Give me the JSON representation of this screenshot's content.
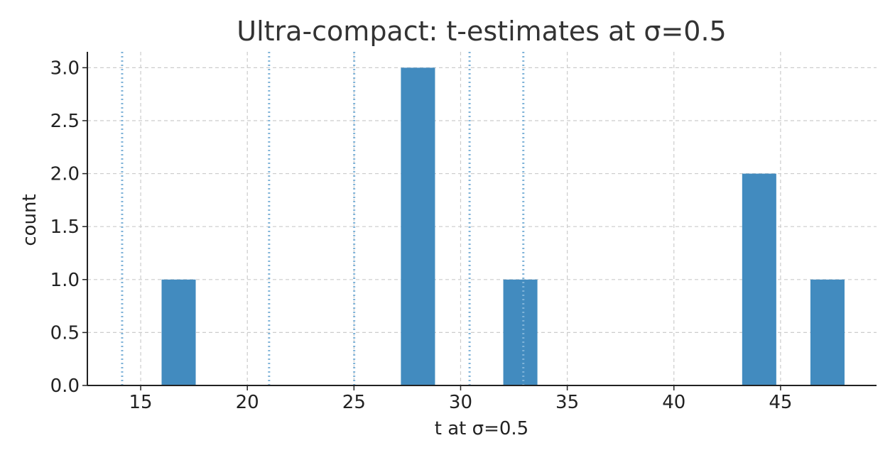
{
  "chart_data": {
    "type": "bar",
    "title": "Ultra-compact: t-estimates at σ=0.5",
    "xlabel": "t at σ=0.5",
    "ylabel": "count",
    "xlim": [
      12.5,
      49.5
    ],
    "ylim": [
      0,
      3.15
    ],
    "x_ticks": [
      15,
      20,
      25,
      30,
      35,
      40,
      45
    ],
    "y_ticks": [
      0.0,
      0.5,
      1.0,
      1.5,
      2.0,
      2.5,
      3.0
    ],
    "x_tick_labels": [
      "15",
      "20",
      "25",
      "30",
      "35",
      "40",
      "45"
    ],
    "y_tick_labels": [
      "0.0",
      "0.5",
      "1.0",
      "1.5",
      "2.0",
      "2.5",
      "3.0"
    ],
    "grid": true,
    "bin_width": 1.6,
    "bins": [
      {
        "x0": 15.98,
        "x1": 17.58,
        "count": 1
      },
      {
        "x0": 27.2,
        "x1": 28.8,
        "count": 3
      },
      {
        "x0": 32.0,
        "x1": 33.6,
        "count": 1
      },
      {
        "x0": 43.2,
        "x1": 44.8,
        "count": 2
      },
      {
        "x0": 46.4,
        "x1": 48.0,
        "count": 1
      }
    ],
    "reference_lines": [
      14.13,
      21.02,
      25.01,
      30.42,
      32.94
    ],
    "colors": {
      "bar": "#428bbf",
      "reference_line": "#7fb3d8",
      "grid": "#cccccc",
      "axis": "#222222"
    }
  }
}
